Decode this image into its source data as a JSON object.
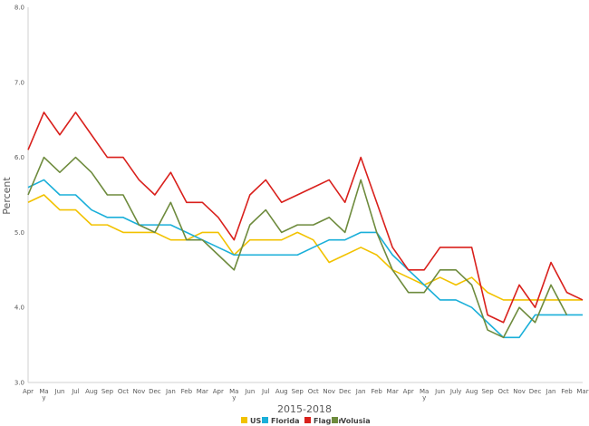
{
  "chart_data": {
    "type": "line",
    "xlabel": "2015-2018",
    "ylabel": "Percent",
    "ylim": [
      3.0,
      8.0
    ],
    "yticks": [
      "3.0",
      "4.0",
      "5.0",
      "6.0",
      "7.0",
      "8.0"
    ],
    "grid": false,
    "legend": "bottom",
    "categories": [
      "Apr",
      "Ma y",
      "Jun",
      "Jul",
      "Aug",
      "Sep",
      "Oct",
      "Nov",
      "Dec",
      "Jan",
      "Feb",
      "Mar",
      "Apr",
      "Ma y",
      "Jun",
      "Jul",
      "Aug",
      "Sep",
      "Oct",
      "Nov",
      "Dec",
      "Jan",
      "Feb",
      "Mar",
      "Apr",
      "Ma y",
      "Jun",
      "July",
      "Aug",
      "Sep",
      "Oct",
      "Nov",
      "Dec",
      "Jan",
      "Feb",
      "Mar"
    ],
    "series": [
      {
        "name": "US",
        "color": "#f2c200",
        "values": [
          5.4,
          5.5,
          5.3,
          5.3,
          5.1,
          5.1,
          5.0,
          5.0,
          5.0,
          4.9,
          4.9,
          5.0,
          5.0,
          4.7,
          4.9,
          4.9,
          4.9,
          5.0,
          4.9,
          4.6,
          4.7,
          4.8,
          4.7,
          4.5,
          4.4,
          4.3,
          4.4,
          4.3,
          4.4,
          4.2,
          4.1,
          4.1,
          4.1,
          4.1,
          4.1,
          4.1
        ]
      },
      {
        "name": "Florida",
        "color": "#1aafd9",
        "values": [
          5.6,
          5.7,
          5.5,
          5.5,
          5.3,
          5.2,
          5.2,
          5.1,
          5.1,
          5.1,
          5.0,
          4.9,
          4.8,
          4.7,
          4.7,
          4.7,
          4.7,
          4.7,
          4.8,
          4.9,
          4.9,
          5.0,
          5.0,
          4.7,
          4.5,
          4.3,
          4.1,
          4.1,
          4.0,
          3.8,
          3.6,
          3.6,
          3.9,
          3.9,
          3.9,
          3.9
        ]
      },
      {
        "name": "Flagler",
        "color": "#d9201c",
        "values": [
          6.1,
          6.6,
          6.3,
          6.6,
          6.3,
          6.0,
          6.0,
          5.7,
          5.5,
          5.8,
          5.4,
          5.4,
          5.2,
          4.9,
          5.5,
          5.7,
          5.4,
          5.5,
          5.6,
          5.7,
          5.4,
          6.0,
          5.4,
          4.8,
          4.5,
          4.5,
          4.8,
          4.8,
          4.8,
          3.9,
          3.8,
          4.3,
          4.0,
          4.6,
          4.2,
          4.1
        ]
      },
      {
        "name": "Volusia",
        "color": "#6e8b3d",
        "values": [
          5.5,
          6.0,
          5.8,
          6.0,
          5.8,
          5.5,
          5.5,
          5.1,
          5.0,
          5.4,
          4.9,
          4.9,
          4.7,
          4.5,
          5.1,
          5.3,
          5.0,
          5.1,
          5.1,
          5.2,
          5.0,
          5.7,
          5.0,
          4.5,
          4.2,
          4.2,
          4.5,
          4.5,
          4.3,
          3.7,
          3.6,
          4.0,
          3.8,
          4.3,
          3.9,
          null
        ]
      }
    ]
  }
}
